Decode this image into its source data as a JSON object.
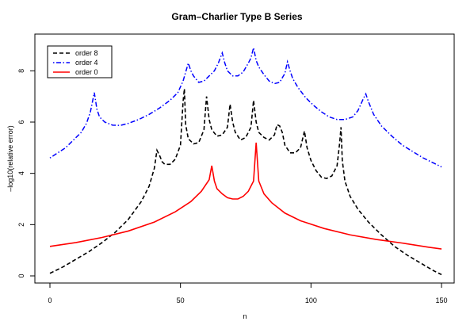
{
  "chart_data": {
    "type": "line",
    "title": "Gram–Charlier Type B Series",
    "xlabel": "n",
    "ylabel": "–log10(relative error)",
    "xlim": [
      0,
      150
    ],
    "ylim": [
      0,
      9.3
    ],
    "x_ticks": [
      0,
      50,
      100,
      150
    ],
    "y_ticks": [
      0,
      2,
      4,
      6,
      8
    ],
    "grid": false,
    "legend_position": "top-left",
    "series": [
      {
        "name": "order 8",
        "color": "#000000",
        "dash": "dashed",
        "points": [
          [
            0,
            0.1
          ],
          [
            5,
            0.35
          ],
          [
            10,
            0.65
          ],
          [
            15,
            0.95
          ],
          [
            20,
            1.3
          ],
          [
            25,
            1.7
          ],
          [
            30,
            2.2
          ],
          [
            35,
            2.9
          ],
          [
            38,
            3.5
          ],
          [
            40,
            4.2
          ],
          [
            41,
            4.9
          ],
          [
            42,
            4.7
          ],
          [
            43,
            4.45
          ],
          [
            44,
            4.35
          ],
          [
            46,
            4.35
          ],
          [
            48,
            4.55
          ],
          [
            50,
            5.1
          ],
          [
            51,
            6.8
          ],
          [
            51.5,
            7.3
          ],
          [
            52,
            5.9
          ],
          [
            53,
            5.35
          ],
          [
            55,
            5.15
          ],
          [
            57,
            5.2
          ],
          [
            59,
            5.7
          ],
          [
            60,
            7.0
          ],
          [
            61,
            6.1
          ],
          [
            62,
            5.7
          ],
          [
            64,
            5.45
          ],
          [
            66,
            5.5
          ],
          [
            68,
            5.8
          ],
          [
            69,
            6.7
          ],
          [
            70,
            6.0
          ],
          [
            71,
            5.6
          ],
          [
            73,
            5.3
          ],
          [
            75,
            5.4
          ],
          [
            77,
            5.8
          ],
          [
            78,
            6.85
          ],
          [
            79,
            6.0
          ],
          [
            80,
            5.6
          ],
          [
            82,
            5.4
          ],
          [
            84,
            5.3
          ],
          [
            86,
            5.5
          ],
          [
            87,
            5.9
          ],
          [
            88,
            5.85
          ],
          [
            89,
            5.6
          ],
          [
            90,
            5.1
          ],
          [
            92,
            4.8
          ],
          [
            94,
            4.8
          ],
          [
            96,
            5.0
          ],
          [
            97.5,
            5.65
          ],
          [
            98.5,
            5.0
          ],
          [
            100,
            4.5
          ],
          [
            102,
            4.1
          ],
          [
            104,
            3.85
          ],
          [
            106,
            3.8
          ],
          [
            108,
            3.9
          ],
          [
            110,
            4.3
          ],
          [
            111,
            5.2
          ],
          [
            111.5,
            5.8
          ],
          [
            112,
            4.5
          ],
          [
            113,
            3.7
          ],
          [
            115,
            3.1
          ],
          [
            118,
            2.6
          ],
          [
            122,
            2.1
          ],
          [
            127,
            1.6
          ],
          [
            132,
            1.15
          ],
          [
            137,
            0.8
          ],
          [
            142,
            0.5
          ],
          [
            147,
            0.2
          ],
          [
            150,
            0.05
          ]
        ]
      },
      {
        "name": "order 4",
        "color": "#0000FF",
        "dash": "dotdash",
        "points": [
          [
            0,
            4.6
          ],
          [
            3,
            4.8
          ],
          [
            6,
            5.0
          ],
          [
            9,
            5.3
          ],
          [
            12,
            5.6
          ],
          [
            14,
            5.95
          ],
          [
            15.5,
            6.4
          ],
          [
            17,
            7.15
          ],
          [
            18,
            6.5
          ],
          [
            19,
            6.2
          ],
          [
            21,
            6.0
          ],
          [
            24,
            5.88
          ],
          [
            27,
            5.87
          ],
          [
            30,
            5.95
          ],
          [
            34,
            6.1
          ],
          [
            38,
            6.3
          ],
          [
            42,
            6.55
          ],
          [
            46,
            6.85
          ],
          [
            49,
            7.15
          ],
          [
            51,
            7.6
          ],
          [
            53,
            8.3
          ],
          [
            54,
            8.0
          ],
          [
            55,
            7.8
          ],
          [
            57,
            7.55
          ],
          [
            59,
            7.6
          ],
          [
            61,
            7.8
          ],
          [
            63,
            8.0
          ],
          [
            64.5,
            8.3
          ],
          [
            66,
            8.7
          ],
          [
            67,
            8.3
          ],
          [
            68,
            8.0
          ],
          [
            70,
            7.8
          ],
          [
            72,
            7.8
          ],
          [
            74,
            7.95
          ],
          [
            76,
            8.3
          ],
          [
            77,
            8.5
          ],
          [
            78,
            8.9
          ],
          [
            79,
            8.4
          ],
          [
            80,
            8.15
          ],
          [
            82,
            7.85
          ],
          [
            84,
            7.6
          ],
          [
            86,
            7.5
          ],
          [
            88,
            7.55
          ],
          [
            90,
            7.9
          ],
          [
            91,
            8.35
          ],
          [
            92,
            8.0
          ],
          [
            93,
            7.7
          ],
          [
            95,
            7.35
          ],
          [
            98,
            6.95
          ],
          [
            101,
            6.65
          ],
          [
            104,
            6.4
          ],
          [
            107,
            6.2
          ],
          [
            110,
            6.1
          ],
          [
            113,
            6.1
          ],
          [
            116,
            6.2
          ],
          [
            118,
            6.45
          ],
          [
            120,
            6.9
          ],
          [
            121,
            7.1
          ],
          [
            122,
            6.8
          ],
          [
            124,
            6.3
          ],
          [
            127,
            5.85
          ],
          [
            131,
            5.45
          ],
          [
            135,
            5.1
          ],
          [
            139,
            4.85
          ],
          [
            143,
            4.6
          ],
          [
            147,
            4.4
          ],
          [
            150,
            4.25
          ]
        ]
      },
      {
        "name": "order 0",
        "color": "#FF0000",
        "dash": "solid",
        "points": [
          [
            0,
            1.15
          ],
          [
            10,
            1.3
          ],
          [
            20,
            1.5
          ],
          [
            30,
            1.75
          ],
          [
            40,
            2.1
          ],
          [
            48,
            2.5
          ],
          [
            54,
            2.9
          ],
          [
            58,
            3.3
          ],
          [
            61,
            3.75
          ],
          [
            62,
            4.3
          ],
          [
            63,
            3.7
          ],
          [
            64,
            3.4
          ],
          [
            66,
            3.2
          ],
          [
            68,
            3.05
          ],
          [
            70,
            3.0
          ],
          [
            72,
            3.0
          ],
          [
            74,
            3.1
          ],
          [
            76,
            3.3
          ],
          [
            78,
            3.7
          ],
          [
            79,
            5.2
          ],
          [
            80,
            3.7
          ],
          [
            82,
            3.2
          ],
          [
            85,
            2.85
          ],
          [
            90,
            2.45
          ],
          [
            96,
            2.15
          ],
          [
            105,
            1.85
          ],
          [
            115,
            1.6
          ],
          [
            125,
            1.42
          ],
          [
            135,
            1.28
          ],
          [
            145,
            1.12
          ],
          [
            150,
            1.05
          ]
        ]
      }
    ]
  }
}
